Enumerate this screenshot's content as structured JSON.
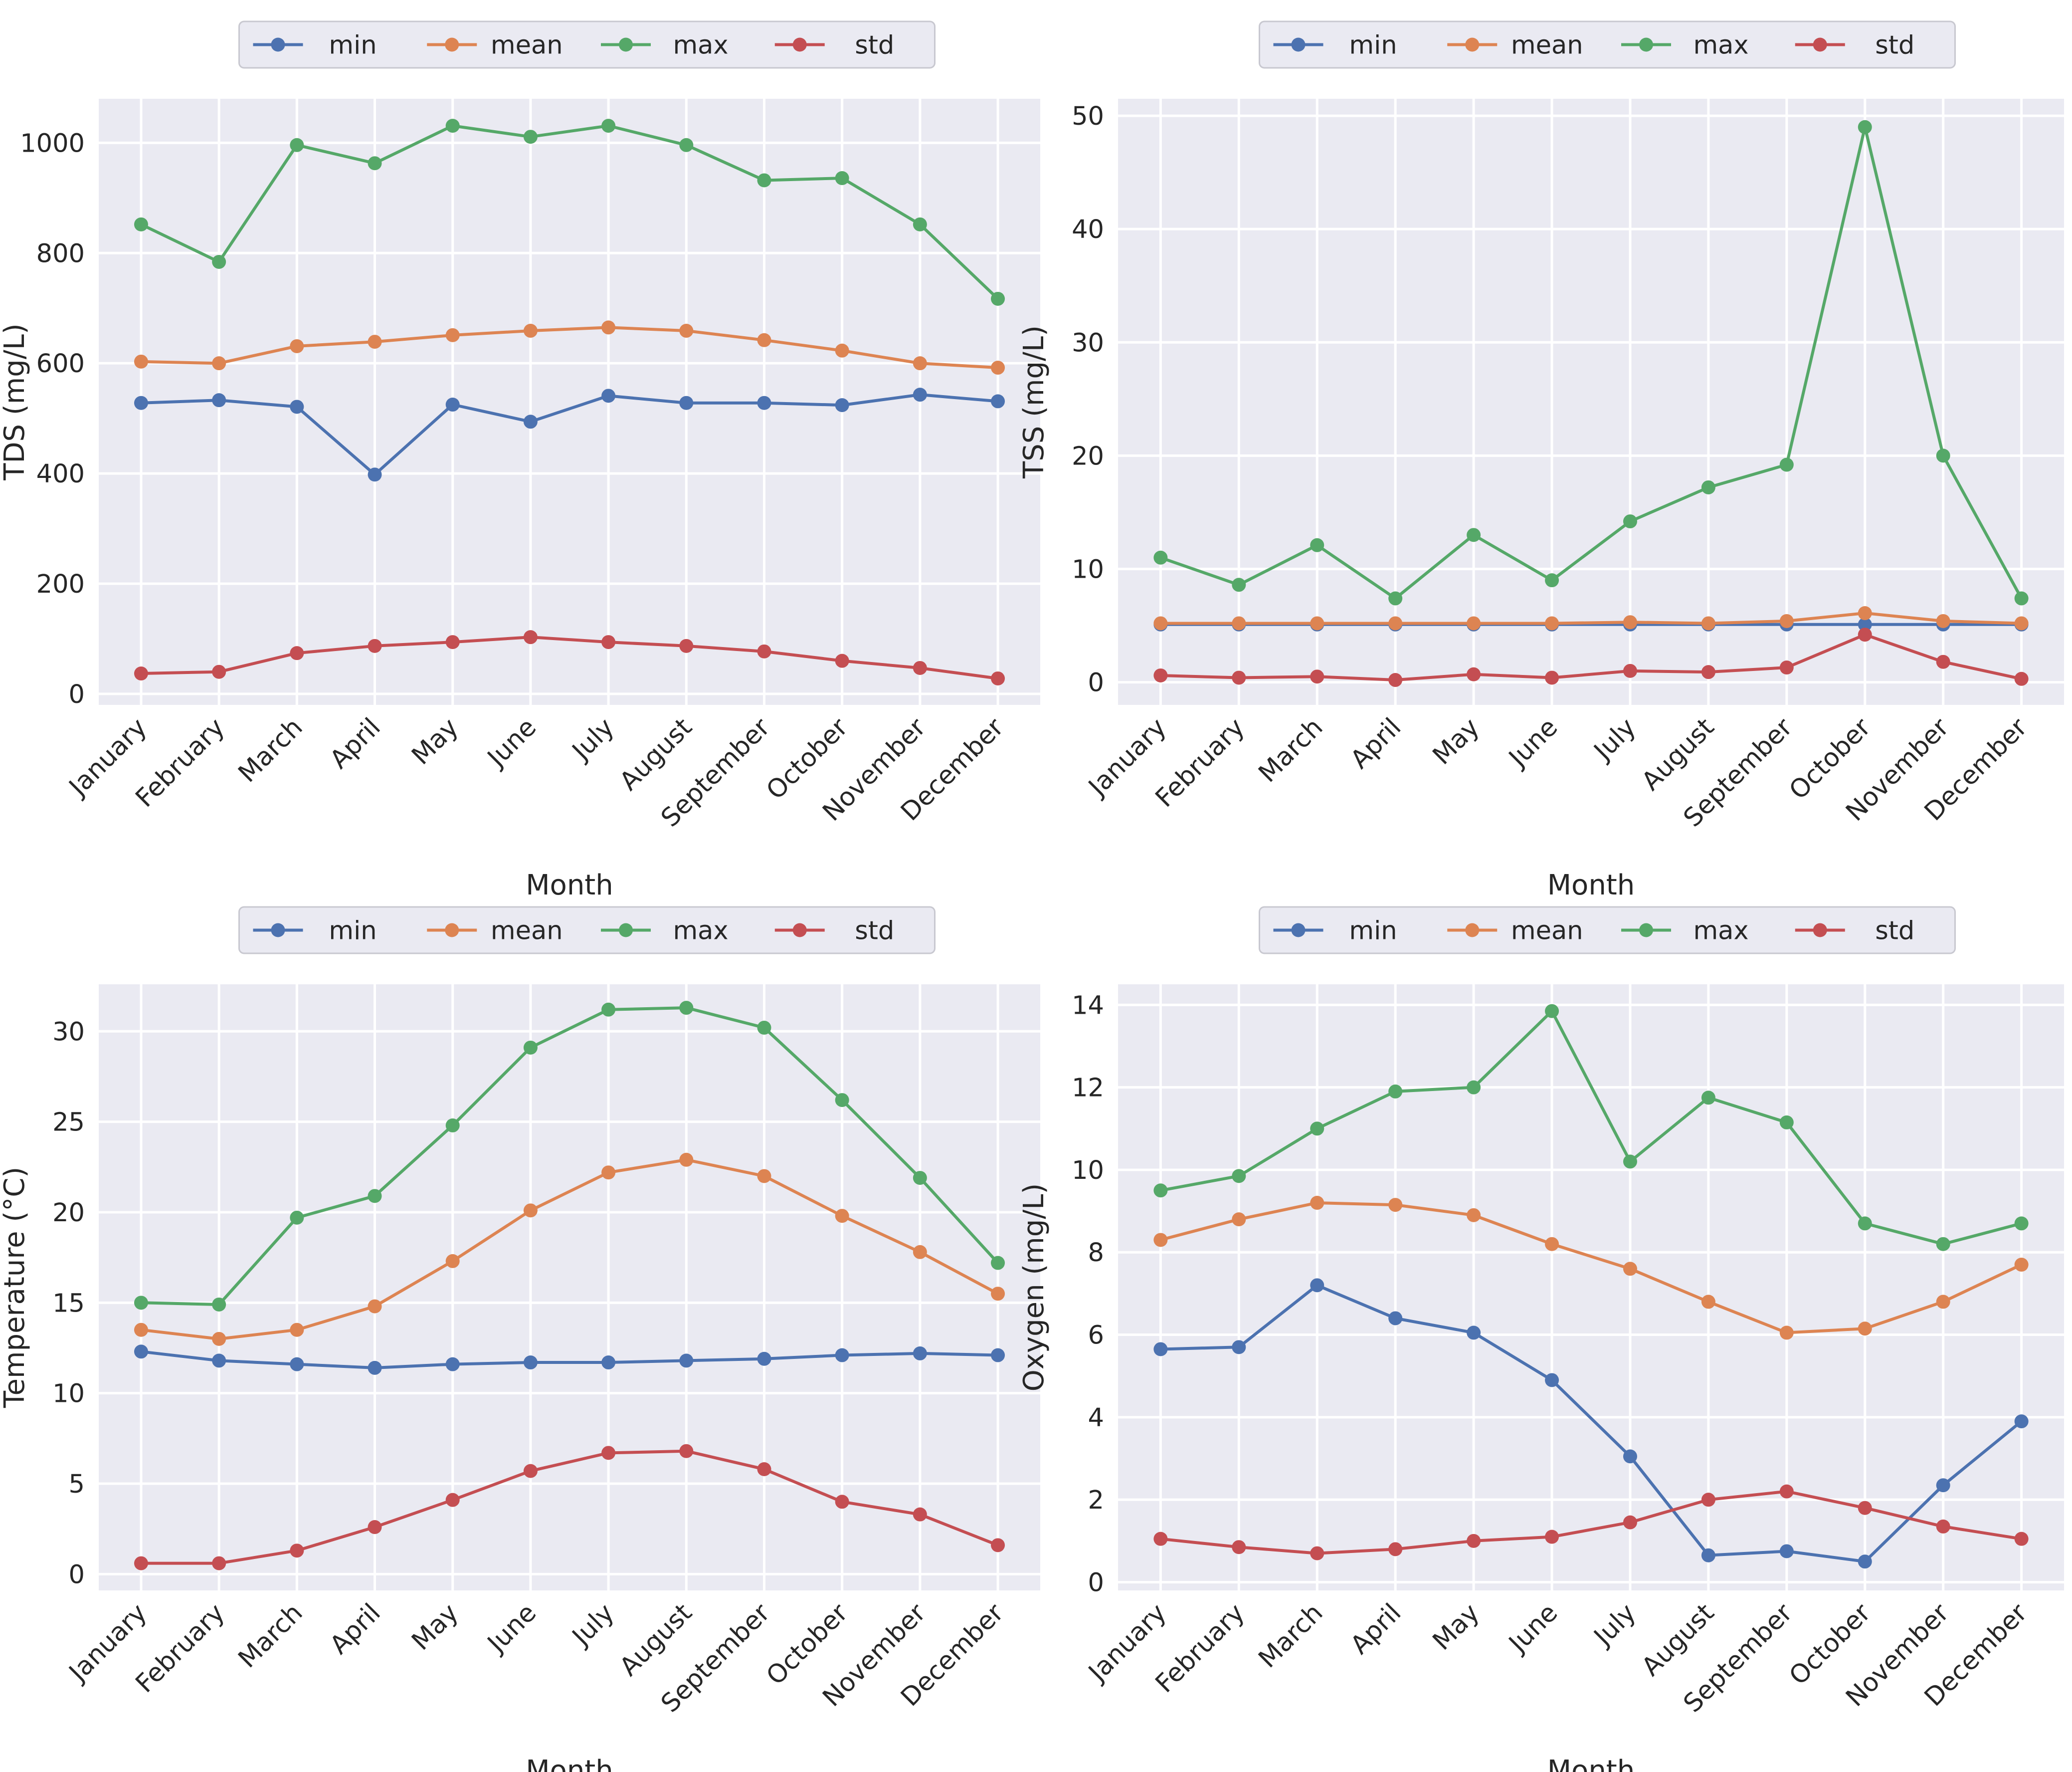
{
  "chart_data": [
    {
      "type": "line",
      "title": "",
      "xlabel": "Month",
      "ylabel": "TDS (mg/L)",
      "categories": [
        "January",
        "February",
        "March",
        "April",
        "May",
        "June",
        "July",
        "August",
        "September",
        "October",
        "November",
        "December"
      ],
      "ylim": [
        -20,
        1080
      ],
      "yticks": [
        0,
        200,
        400,
        600,
        800,
        1000
      ],
      "grid": true,
      "legend_placement": "top-center",
      "series": [
        {
          "name": "min",
          "color": "#4c72b0",
          "values": [
            528,
            533,
            521,
            398,
            525,
            494,
            541,
            528,
            528,
            524,
            543,
            531
          ]
        },
        {
          "name": "mean",
          "color": "#dd8452",
          "values": [
            603,
            600,
            631,
            639,
            651,
            659,
            665,
            659,
            642,
            623,
            600,
            592
          ]
        },
        {
          "name": "max",
          "color": "#55a868",
          "values": [
            852,
            784,
            996,
            963,
            1031,
            1011,
            1031,
            996,
            932,
            936,
            852,
            717
          ]
        },
        {
          "name": "std",
          "color": "#c44e52",
          "values": [
            37,
            40,
            74,
            87,
            94,
            103,
            94,
            87,
            77,
            60,
            47,
            28
          ]
        }
      ]
    },
    {
      "type": "line",
      "title": "",
      "xlabel": "Month",
      "ylabel": "TSS (mg/L)",
      "categories": [
        "January",
        "February",
        "March",
        "April",
        "May",
        "June",
        "July",
        "August",
        "September",
        "October",
        "November",
        "December"
      ],
      "ylim": [
        -2,
        51.5
      ],
      "yticks": [
        0,
        10,
        20,
        30,
        40,
        50
      ],
      "grid": true,
      "legend_placement": "top-center",
      "series": [
        {
          "name": "min",
          "color": "#4c72b0",
          "values": [
            5.1,
            5.1,
            5.1,
            5.1,
            5.1,
            5.1,
            5.1,
            5.1,
            5.1,
            5.1,
            5.1,
            5.1
          ]
        },
        {
          "name": "mean",
          "color": "#dd8452",
          "values": [
            5.2,
            5.2,
            5.2,
            5.2,
            5.2,
            5.2,
            5.3,
            5.2,
            5.4,
            6.1,
            5.4,
            5.2
          ]
        },
        {
          "name": "max",
          "color": "#55a868",
          "values": [
            11.0,
            8.6,
            12.1,
            7.4,
            13.0,
            9.0,
            14.2,
            17.2,
            19.2,
            49.0,
            20.0,
            7.4
          ]
        },
        {
          "name": "std",
          "color": "#c44e52",
          "values": [
            0.6,
            0.4,
            0.5,
            0.2,
            0.7,
            0.4,
            1.0,
            0.9,
            1.3,
            4.2,
            1.8,
            0.3
          ]
        }
      ]
    },
    {
      "type": "line",
      "title": "",
      "xlabel": "Month",
      "ylabel": "Temperature (°C)",
      "categories": [
        "January",
        "February",
        "March",
        "April",
        "May",
        "June",
        "July",
        "August",
        "September",
        "October",
        "November",
        "December"
      ],
      "ylim": [
        -0.9,
        32.6
      ],
      "yticks": [
        0,
        5,
        10,
        15,
        20,
        25,
        30
      ],
      "grid": true,
      "legend_placement": "top-center",
      "series": [
        {
          "name": "min",
          "color": "#4c72b0",
          "values": [
            12.3,
            11.8,
            11.6,
            11.4,
            11.6,
            11.7,
            11.7,
            11.8,
            11.9,
            12.1,
            12.2,
            12.1
          ]
        },
        {
          "name": "mean",
          "color": "#dd8452",
          "values": [
            13.5,
            13.0,
            13.5,
            14.8,
            17.3,
            20.1,
            22.2,
            22.9,
            22.0,
            19.8,
            17.8,
            15.5
          ]
        },
        {
          "name": "max",
          "color": "#55a868",
          "values": [
            15.0,
            14.9,
            19.7,
            20.9,
            24.8,
            29.1,
            31.2,
            31.3,
            30.2,
            26.2,
            21.9,
            17.2
          ]
        },
        {
          "name": "std",
          "color": "#c44e52",
          "values": [
            0.6,
            0.6,
            1.3,
            2.6,
            4.1,
            5.7,
            6.7,
            6.8,
            5.8,
            4.0,
            3.3,
            1.6
          ]
        }
      ]
    },
    {
      "type": "line",
      "title": "",
      "xlabel": "Month",
      "ylabel": "Oxygen (mg/L)",
      "categories": [
        "January",
        "February",
        "March",
        "April",
        "May",
        "June",
        "July",
        "August",
        "September",
        "October",
        "November",
        "December"
      ],
      "ylim": [
        -0.2,
        14.5
      ],
      "yticks": [
        0,
        2,
        4,
        6,
        8,
        10,
        12,
        14
      ],
      "grid": true,
      "legend_placement": "top-center",
      "series": [
        {
          "name": "min",
          "color": "#4c72b0",
          "values": [
            5.65,
            5.7,
            7.2,
            6.4,
            6.05,
            4.9,
            3.05,
            0.65,
            0.75,
            0.5,
            2.35,
            3.9
          ]
        },
        {
          "name": "mean",
          "color": "#dd8452",
          "values": [
            8.3,
            8.8,
            9.2,
            9.15,
            8.9,
            8.2,
            7.6,
            6.8,
            6.05,
            6.15,
            6.8,
            7.7
          ]
        },
        {
          "name": "max",
          "color": "#55a868",
          "values": [
            9.5,
            9.85,
            11.0,
            11.9,
            12.0,
            13.85,
            10.2,
            11.75,
            11.15,
            8.7,
            8.2,
            8.7
          ]
        },
        {
          "name": "std",
          "color": "#c44e52",
          "values": [
            1.05,
            0.85,
            0.7,
            0.8,
            1.0,
            1.1,
            1.45,
            2.0,
            2.2,
            1.8,
            1.35,
            1.05
          ]
        }
      ]
    }
  ]
}
